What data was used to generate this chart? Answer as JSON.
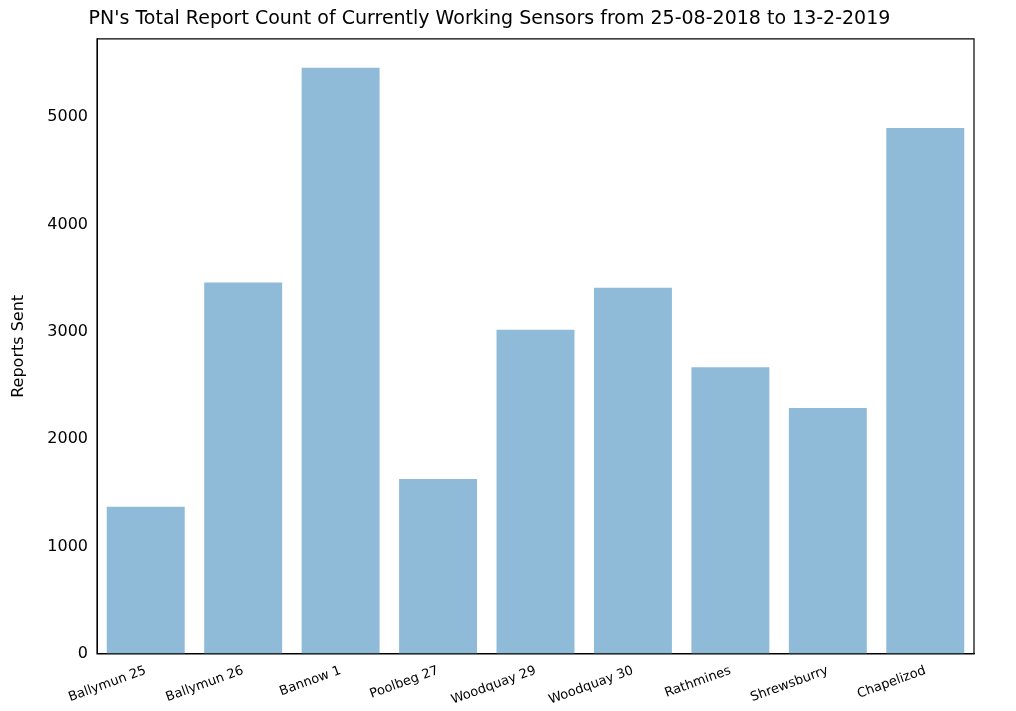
{
  "chart_data": {
    "type": "bar",
    "title": "PN's Total Report Count of Currently Working Sensors from 25-08-2018 to 13-2-2019",
    "ylabel": "Reports Sent",
    "categories": [
      "Ballymun 25",
      "Ballymun 26",
      "Bannow 1",
      "Poolbeg 27",
      "Woodquay 29",
      "Woodquay 30",
      "Rathmines",
      "Shrewsburry",
      "Chapelizod"
    ],
    "values": [
      1370,
      3460,
      5460,
      1630,
      3020,
      3410,
      2670,
      2290,
      4900
    ],
    "color": "#8fbbd9",
    "ylim": [
      0,
      5730
    ],
    "yticks": [
      0,
      1000,
      2000,
      3000,
      4000,
      5000
    ],
    "grid": false,
    "legend": false
  }
}
